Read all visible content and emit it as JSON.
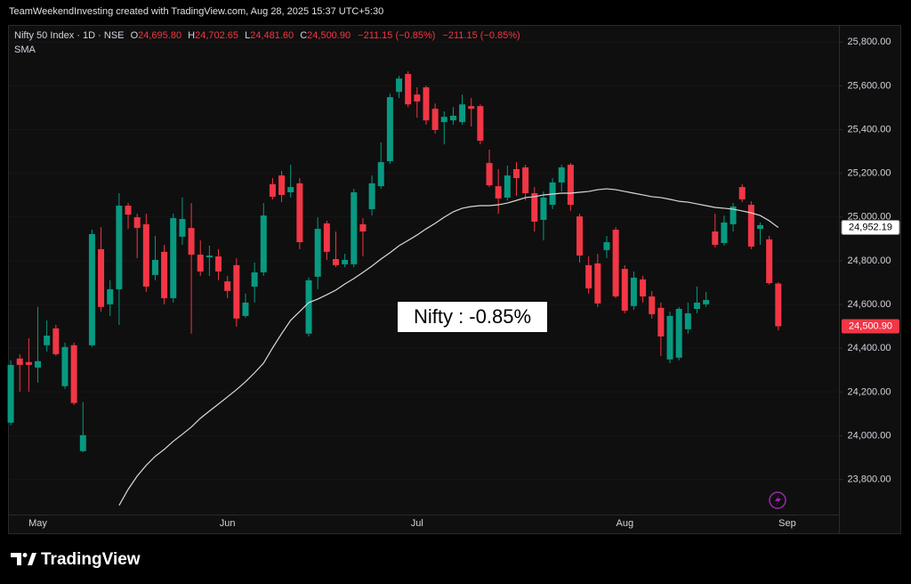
{
  "header": {
    "credit": "TeamWeekendInvesting created with TradingView.com, Aug 28, 2025 15:37 UTC+5:30"
  },
  "brand": "TradingView",
  "chart_data": {
    "type": "candlestick",
    "annotation": "Nifty : -0.85%",
    "legend": [
      {
        "key": "O",
        "value": "24,695.80"
      },
      {
        "key": "H",
        "value": "24,702.65"
      },
      {
        "key": "L",
        "value": "24,481.60"
      },
      {
        "key": "C",
        "value": "24,500.90"
      }
    ],
    "changes": [
      "−211.15 (−0.85%)",
      "−211.15 (−0.85%)"
    ],
    "categories": [
      null,
      null,
      null,
      "May",
      null,
      null,
      null,
      null,
      null,
      null,
      null,
      null,
      null,
      null,
      null,
      null,
      null,
      null,
      null,
      null,
      null,
      null,
      null,
      null,
      "Jun",
      null,
      null,
      null,
      null,
      null,
      null,
      null,
      null,
      null,
      null,
      null,
      null,
      null,
      null,
      null,
      null,
      null,
      null,
      null,
      null,
      "Jul",
      null,
      null,
      null,
      null,
      null,
      null,
      null,
      null,
      null,
      null,
      null,
      null,
      null,
      null,
      null,
      null,
      null,
      null,
      null,
      null,
      null,
      null,
      "Aug",
      null,
      null,
      null,
      null,
      null,
      null,
      null,
      null,
      null,
      null,
      null,
      null,
      null,
      null,
      null,
      null,
      null,
      "Sep"
    ],
    "series": [
      {
        "name": "Nifty 50 Index · 1D · NSE",
        "up_color": "#089981",
        "down_color": "#f23645",
        "open": [
          24060,
          24353,
          24337,
          24312,
          24414,
          24491,
          24227,
          24414,
          23930,
          24414,
          24853,
          24601,
          24670,
          25052,
          24999,
          24967,
          24735,
          24841,
          24629,
          24910,
          24950,
          24828,
          24816,
          24820,
          24706,
          24780,
          24548,
          24682,
          24747,
          25150,
          25190,
          25113,
          25154,
          24467,
          24727,
          24971,
          24808,
          24784,
          24784,
          24967,
          25036,
          25141,
          25255,
          25572,
          25654,
          25560,
          25593,
          25495,
          25434,
          25442,
          25434,
          25507,
          25507,
          25247,
          25141,
          25089,
          25219,
          25227,
          25109,
          24987,
          25056,
          25158,
          25239,
          25003,
          24780,
          24788,
          24849,
          24942,
          24763,
          24593,
          24715,
          24637,
          24585,
          24349,
          24357,
          24487,
          24580,
          24601,
          24934,
          24881,
          24967,
          25137,
          25056,
          24946,
          24898,
          24695.8,
          null
        ],
        "high": [
          24345,
          24373,
          24446,
          24589,
          24528,
          24507,
          24426,
          24426,
          24154,
          24942,
          24954,
          24711,
          25109,
          25064,
          25015,
          25015,
          24914,
          24873,
          25015,
          25089,
          25064,
          24893,
          24869,
          24853,
          24731,
          24812,
          24650,
          24792,
          25064,
          25178,
          25211,
          25239,
          25178,
          24723,
          24999,
          24983,
          24934,
          24832,
          25129,
          24995,
          25190,
          25341,
          25564,
          25645,
          25666,
          25593,
          25601,
          25519,
          25483,
          25503,
          25560,
          25544,
          25515,
          25308,
          25219,
          25235,
          25251,
          25239,
          25137,
          25117,
          25178,
          25239,
          25247,
          25015,
          24820,
          24832,
          24914,
          24954,
          24780,
          24751,
          24731,
          24662,
          24609,
          24568,
          24589,
          24609,
          24682,
          24658,
          25015,
          25007,
          25064,
          25150,
          25072,
          24975,
          24914,
          24702.65,
          null
        ],
        "low": [
          24048,
          24202,
          24202,
          24243,
          24385,
          24365,
          24215,
          24141,
          23925,
          24406,
          24568,
          24548,
          24507,
          24946,
          24812,
          24658,
          24711,
          24601,
          24609,
          24873,
          24467,
          24731,
          24731,
          24711,
          24629,
          24499,
          24540,
          24609,
          24731,
          25081,
          25068,
          25089,
          24853,
          24454,
          24670,
          24804,
          24771,
          24771,
          24771,
          24820,
          25007,
          25129,
          25243,
          25544,
          25503,
          25454,
          25422,
          25381,
          25332,
          25422,
          25422,
          25414,
          25332,
          25137,
          25015,
          25076,
          25097,
          25076,
          24934,
          24893,
          25036,
          25117,
          25028,
          24792,
          24650,
          24589,
          24812,
          24629,
          24560,
          24576,
          24609,
          24536,
          24365,
          24332,
          24345,
          24467,
          24560,
          24589,
          24861,
          24869,
          24934,
          25068,
          24853,
          24873,
          24690,
          24481.6,
          null
        ],
        "close": [
          24324,
          24324,
          24324,
          24341,
          24458,
          24373,
          24406,
          24150,
          24003,
          24922,
          24589,
          24670,
          25052,
          25011,
          24950,
          24682,
          24804,
          24629,
          24995,
          24991,
          24828,
          24751,
          24824,
          24751,
          24662,
          24536,
          24609,
          24747,
          25007,
          25093,
          25101,
          25137,
          24885,
          24711,
          24946,
          24841,
          24780,
          24804,
          25113,
          24934,
          25154,
          25251,
          25548,
          25633,
          25515,
          25528,
          25442,
          25398,
          25458,
          25463,
          25515,
          25495,
          25349,
          25145,
          25085,
          25190,
          25178,
          25109,
          24979,
          25089,
          25158,
          25227,
          25056,
          24824,
          24674,
          24605,
          24885,
          24637,
          24572,
          24723,
          24637,
          24556,
          24454,
          24548,
          24580,
          24560,
          24609,
          24621,
          24873,
          24975,
          25048,
          25081,
          24865,
          24963,
          24698,
          24500.9,
          null
        ],
        "last_label": {
          "value": 24500.9,
          "label": "24,500.90"
        }
      },
      {
        "name": "SMA",
        "type": "line",
        "color": "#d9d9d9",
        "values": [
          null,
          null,
          null,
          null,
          null,
          null,
          null,
          null,
          null,
          null,
          null,
          null,
          23682,
          23755,
          23816,
          23865,
          23906,
          23938,
          23975,
          24007,
          24040,
          24080,
          24113,
          24145,
          24178,
          24211,
          24247,
          24288,
          24332,
          24402,
          24467,
          24528,
          24568,
          24609,
          24625,
          24645,
          24666,
          24694,
          24719,
          24747,
          24776,
          24808,
          24837,
          24869,
          24893,
          24918,
          24946,
          24971,
          24999,
          25024,
          25040,
          25048,
          25052,
          25052,
          25056,
          25064,
          25076,
          25089,
          25093,
          25101,
          25105,
          25109,
          25109,
          25113,
          25117,
          25125,
          25129,
          25125,
          25117,
          25109,
          25101,
          25093,
          25089,
          25081,
          25072,
          25068,
          25060,
          25052,
          25044,
          25040,
          25036,
          25028,
          25019,
          25007,
          24983,
          24952.19,
          null
        ],
        "last_label": {
          "value": 24952.19,
          "label": "24,952.19"
        }
      }
    ],
    "ylim": [
      23640,
      25870
    ],
    "yticks": [
      {
        "value": 23800,
        "label": "23,800.00"
      },
      {
        "value": 24000,
        "label": "24,000.00"
      },
      {
        "value": 24200,
        "label": "24,200.00"
      },
      {
        "value": 24400,
        "label": "24,400.00"
      },
      {
        "value": 24600,
        "label": "24,600.00"
      },
      {
        "value": 24800,
        "label": "24,800.00"
      },
      {
        "value": 25000,
        "label": "25,000.00"
      },
      {
        "value": 25200,
        "label": "25,200.00"
      },
      {
        "value": 25400,
        "label": "25,400.00"
      },
      {
        "value": 25600,
        "label": "25,600.00"
      },
      {
        "value": 25800,
        "label": "25,800.00"
      }
    ],
    "grid": true
  }
}
